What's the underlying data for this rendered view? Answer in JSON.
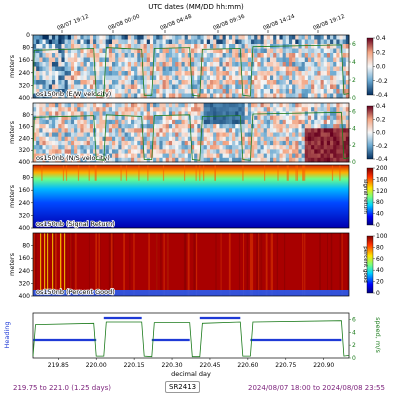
{
  "chart_data": [
    {
      "type": "heatmap",
      "top_axis_title": "UTC dates (MM/DD hh:mm)",
      "top_ticks": [
        "08/07 19:12",
        "08/08 00:00",
        "08/08 04:48",
        "08/08 09:36",
        "08/08 14:24",
        "08/08 19:12"
      ],
      "ylabel": "meters",
      "yticks": [
        0,
        80,
        160,
        240,
        320,
        400
      ],
      "ylim": [
        400,
        0
      ],
      "label": "os150nb (E/W velocity)",
      "colorbar": {
        "ticks": [
          "0.4",
          "0.2",
          "0.0",
          "-0.2",
          "-0.4"
        ],
        "colormap": "RdBu_r"
      },
      "overlay_axis": {
        "ticks": [
          "0",
          "2",
          "4",
          "6"
        ],
        "color": "#1a7a1a"
      },
      "overlay_series": {
        "x": [
          219.75,
          219.78,
          220.0,
          220.05,
          220.15,
          220.2,
          220.35,
          220.4,
          220.55,
          220.6,
          220.7,
          220.75,
          221.0
        ],
        "y": [
          0.5,
          5.5,
          5.6,
          0.3,
          5.6,
          5.5,
          0.4,
          5.7,
          0.3,
          5.6,
          0.4,
          5.8,
          0.5
        ]
      }
    },
    {
      "type": "heatmap",
      "ylabel": "meters",
      "yticks": [
        80,
        160,
        240,
        320,
        400
      ],
      "label": "os150nb (N/S velocity)",
      "colorbar": {
        "ticks": [
          "0.4",
          "0.2",
          "0.0",
          "-0.2",
          "-0.4"
        ],
        "colormap": "RdBu_r"
      },
      "overlay_axis": {
        "ticks": [
          "0",
          "2",
          "4",
          "6"
        ],
        "color": "#1a7a1a"
      }
    },
    {
      "type": "heatmap",
      "ylabel": "meters",
      "yticks": [
        80,
        160,
        240,
        320,
        400
      ],
      "label": "os150nb (Signal Return)",
      "colorbar": {
        "ticks": [
          "200",
          "160",
          "120",
          "80",
          "40",
          "0"
        ],
        "colormap": "jet",
        "label": "signal return"
      }
    },
    {
      "type": "heatmap",
      "ylabel": "meters",
      "yticks": [
        80,
        160,
        240,
        320,
        400
      ],
      "label": "os150nb (Percent Good)",
      "colorbar": {
        "ticks": [
          "100",
          "80",
          "60",
          "40",
          "20",
          "0"
        ],
        "colormap": "jet",
        "label": "percent good"
      }
    },
    {
      "type": "line",
      "ylabel_left": "Heading",
      "ylabel_right": "speed, m/s",
      "right_ticks": [
        "0",
        "2",
        "4",
        "6"
      ],
      "xlabel": "decimal day",
      "x_ticks": [
        "219.85",
        "220.00",
        "220.15",
        "220.30",
        "220.45",
        "220.60",
        "220.75",
        "220.90"
      ],
      "xlim": [
        219.75,
        221.0
      ]
    }
  ],
  "footer": {
    "left": "219.75 to 221.0 (1.25 days)",
    "middle": "SR2413",
    "right": "2024/08/07 18:00 to 2024/08/08 23:55"
  },
  "colors": {
    "overlay_green": "#1a7a1a",
    "heading_blue": "#1f3ad6",
    "footer_purple": "#7a1f7a"
  }
}
